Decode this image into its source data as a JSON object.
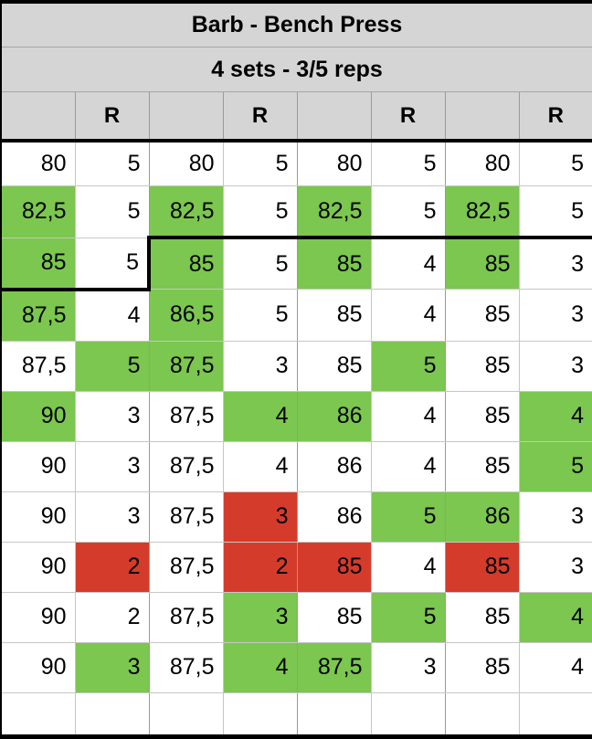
{
  "table": {
    "title": "Barb - Bench Press",
    "subtitle": "4 sets - 3/5 reps",
    "header_cells": [
      "",
      "R",
      "",
      "R",
      "",
      "R",
      "",
      "R"
    ],
    "rows": [
      [
        {
          "v": "80",
          "c": "w"
        },
        {
          "v": "5",
          "c": "w"
        },
        {
          "v": "80",
          "c": "w"
        },
        {
          "v": "5",
          "c": "w"
        },
        {
          "v": "80",
          "c": "w"
        },
        {
          "v": "5",
          "c": "w"
        },
        {
          "v": "80",
          "c": "w"
        },
        {
          "v": "5",
          "c": "w"
        }
      ],
      [
        {
          "v": "82,5",
          "c": "g"
        },
        {
          "v": "5",
          "c": "w"
        },
        {
          "v": "82,5",
          "c": "g"
        },
        {
          "v": "5",
          "c": "w"
        },
        {
          "v": "82,5",
          "c": "g"
        },
        {
          "v": "5",
          "c": "w"
        },
        {
          "v": "82,5",
          "c": "g"
        },
        {
          "v": "5",
          "c": "w"
        }
      ],
      [
        {
          "v": "85",
          "c": "g"
        },
        {
          "v": "5",
          "c": "w"
        },
        {
          "v": "85",
          "c": "g"
        },
        {
          "v": "5",
          "c": "w"
        },
        {
          "v": "85",
          "c": "g"
        },
        {
          "v": "4",
          "c": "w"
        },
        {
          "v": "85",
          "c": "g"
        },
        {
          "v": "3",
          "c": "w"
        }
      ],
      [
        {
          "v": "87,5",
          "c": "g"
        },
        {
          "v": "4",
          "c": "w"
        },
        {
          "v": "86,5",
          "c": "g"
        },
        {
          "v": "5",
          "c": "w"
        },
        {
          "v": "85",
          "c": "w"
        },
        {
          "v": "4",
          "c": "w"
        },
        {
          "v": "85",
          "c": "w"
        },
        {
          "v": "3",
          "c": "w"
        }
      ],
      [
        {
          "v": "87,5",
          "c": "w"
        },
        {
          "v": "5",
          "c": "g"
        },
        {
          "v": "87,5",
          "c": "g"
        },
        {
          "v": "3",
          "c": "w"
        },
        {
          "v": "85",
          "c": "w"
        },
        {
          "v": "5",
          "c": "g"
        },
        {
          "v": "85",
          "c": "w"
        },
        {
          "v": "3",
          "c": "w"
        }
      ],
      [
        {
          "v": "90",
          "c": "g"
        },
        {
          "v": "3",
          "c": "w"
        },
        {
          "v": "87,5",
          "c": "w"
        },
        {
          "v": "4",
          "c": "g"
        },
        {
          "v": "86",
          "c": "g"
        },
        {
          "v": "4",
          "c": "w"
        },
        {
          "v": "85",
          "c": "w"
        },
        {
          "v": "4",
          "c": "g"
        }
      ],
      [
        {
          "v": "90",
          "c": "w"
        },
        {
          "v": "3",
          "c": "w"
        },
        {
          "v": "87,5",
          "c": "w"
        },
        {
          "v": "4",
          "c": "w"
        },
        {
          "v": "86",
          "c": "w"
        },
        {
          "v": "4",
          "c": "w"
        },
        {
          "v": "85",
          "c": "w"
        },
        {
          "v": "5",
          "c": "g"
        }
      ],
      [
        {
          "v": "90",
          "c": "w"
        },
        {
          "v": "3",
          "c": "w"
        },
        {
          "v": "87,5",
          "c": "w"
        },
        {
          "v": "3",
          "c": "r"
        },
        {
          "v": "86",
          "c": "w"
        },
        {
          "v": "5",
          "c": "g"
        },
        {
          "v": "86",
          "c": "g"
        },
        {
          "v": "3",
          "c": "w"
        }
      ],
      [
        {
          "v": "90",
          "c": "w"
        },
        {
          "v": "2",
          "c": "r"
        },
        {
          "v": "87,5",
          "c": "w"
        },
        {
          "v": "2",
          "c": "r"
        },
        {
          "v": "85",
          "c": "r"
        },
        {
          "v": "4",
          "c": "w"
        },
        {
          "v": "85",
          "c": "r"
        },
        {
          "v": "3",
          "c": "w"
        }
      ],
      [
        {
          "v": "90",
          "c": "w"
        },
        {
          "v": "2",
          "c": "w"
        },
        {
          "v": "87,5",
          "c": "w"
        },
        {
          "v": "3",
          "c": "g"
        },
        {
          "v": "85",
          "c": "w"
        },
        {
          "v": "5",
          "c": "g"
        },
        {
          "v": "85",
          "c": "w"
        },
        {
          "v": "4",
          "c": "g"
        }
      ],
      [
        {
          "v": "90",
          "c": "w"
        },
        {
          "v": "3",
          "c": "g"
        },
        {
          "v": "87,5",
          "c": "w"
        },
        {
          "v": "4",
          "c": "g"
        },
        {
          "v": "87,5",
          "c": "g"
        },
        {
          "v": "3",
          "c": "w"
        },
        {
          "v": "85",
          "c": "w"
        },
        {
          "v": "4",
          "c": "w"
        }
      ]
    ],
    "empty_row": [
      "",
      "",
      "",
      "",
      "",
      "",
      "",
      ""
    ],
    "progress_marker": {
      "row_index": 2,
      "step_after_col": 1
    },
    "colors": {
      "green": "#7bc74f",
      "red": "#d53b2b",
      "header_bg": "#d5d5d5",
      "grid": "#c6c6c6",
      "grid_dark": "#9a9a9a",
      "thick_line": "#000000"
    }
  }
}
